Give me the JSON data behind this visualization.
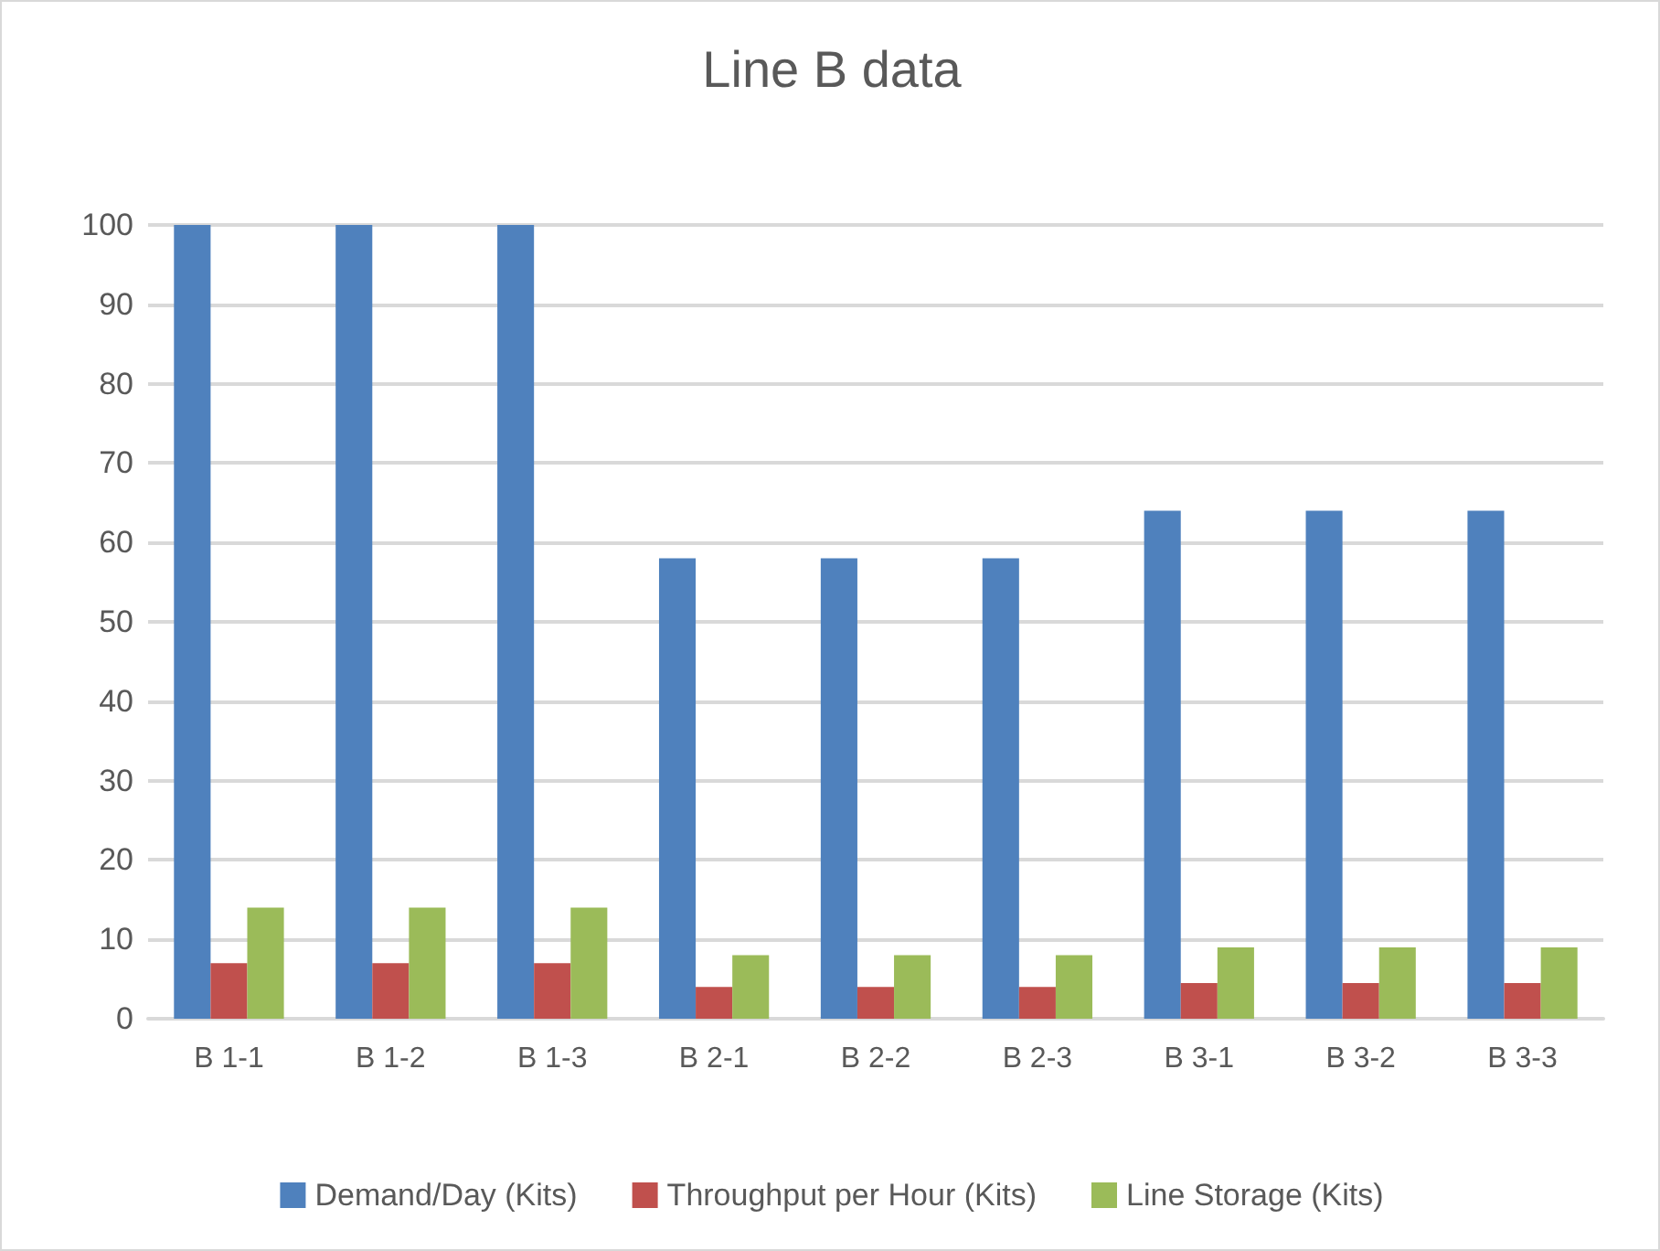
{
  "chart_data": {
    "type": "bar",
    "title": "Line B data",
    "categories": [
      "B 1-1",
      "B 1-2",
      "B 1-3",
      "B 2-1",
      "B 2-2",
      "B 2-3",
      "B 3-1",
      "B 3-2",
      "B 3-3"
    ],
    "series": [
      {
        "name": "Demand/Day (Kits)",
        "color": "#4f81bd",
        "values": [
          100,
          100,
          100,
          58,
          58,
          58,
          64,
          64,
          64
        ]
      },
      {
        "name": "Throughput per Hour (Kits)",
        "color": "#c0504d",
        "values": [
          7,
          7,
          7,
          4,
          4,
          4,
          4.5,
          4.5,
          4.5
        ]
      },
      {
        "name": "Line Storage (Kits)",
        "color": "#9bbb59",
        "values": [
          14,
          14,
          14,
          8,
          8,
          8,
          9,
          9,
          9
        ]
      }
    ],
    "ylim": [
      0,
      100
    ],
    "yticks": [
      0,
      10,
      20,
      30,
      40,
      50,
      60,
      70,
      80,
      90,
      100
    ],
    "grid": "y",
    "legend": "bottom"
  }
}
